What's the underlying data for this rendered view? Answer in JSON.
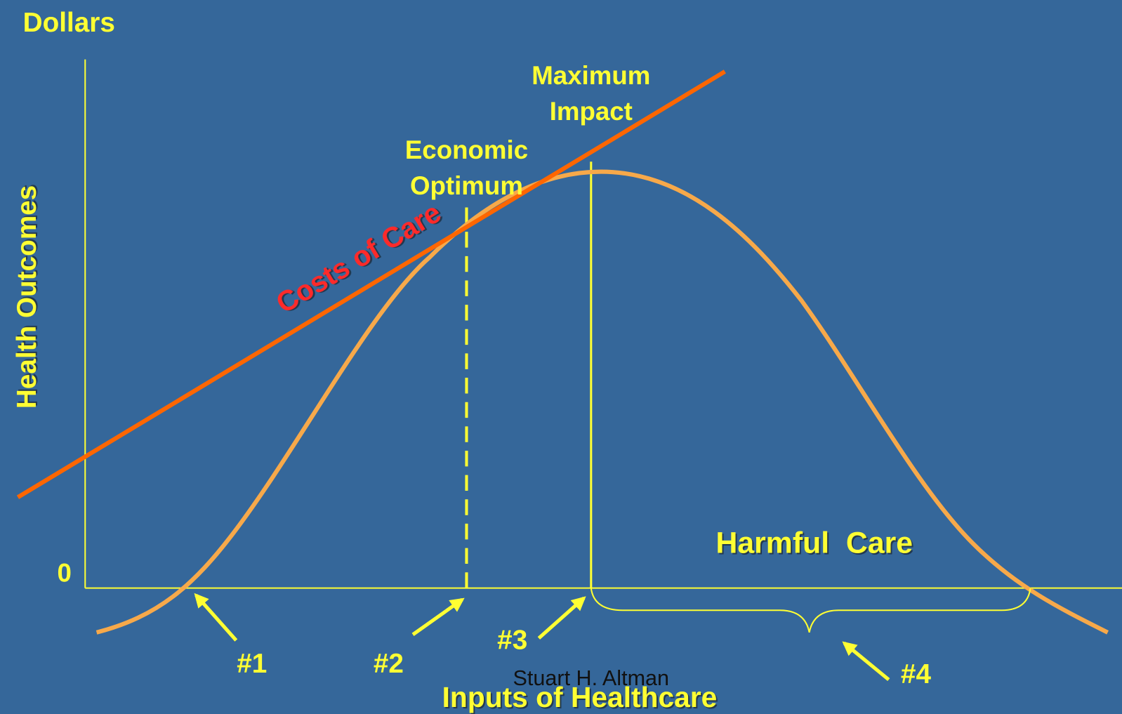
{
  "y_axis": {
    "title": "Dollars",
    "label": "Health Outcomes",
    "zero": "0"
  },
  "x_axis": {
    "label": "Inputs of Healthcare"
  },
  "annotations": {
    "maximum_impact": [
      "Maximum",
      "Impact"
    ],
    "economic_optimum": [
      "Economic",
      "Optimum"
    ],
    "costs_of_care": "Costs of Care",
    "harmful_care": "Harmful  Care"
  },
  "markers": [
    "#1",
    "#2",
    "#3",
    "#4"
  ],
  "footer": "Stuart H. Altman"
}
